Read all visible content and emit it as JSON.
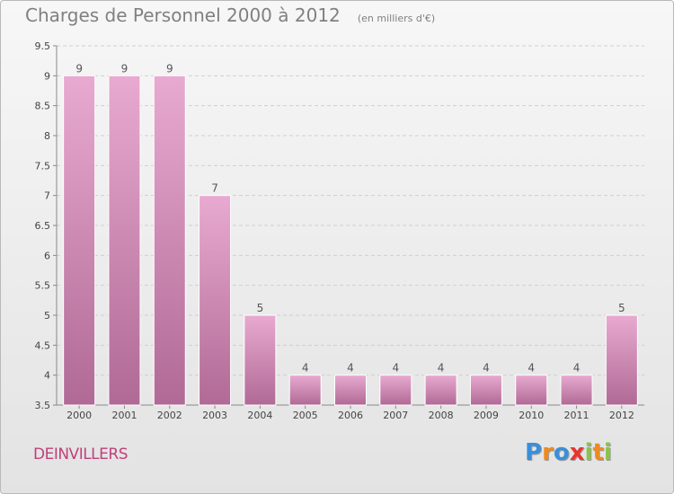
{
  "chart_data": {
    "type": "bar",
    "title": "Charges de Personnel 2000 à 2012",
    "unit_note": "(en milliers d'€)",
    "categories": [
      "2000",
      "2001",
      "2002",
      "2003",
      "2004",
      "2005",
      "2006",
      "2007",
      "2008",
      "2009",
      "2010",
      "2011",
      "2012"
    ],
    "values": [
      9,
      9,
      9,
      7,
      5,
      4,
      4,
      4,
      4,
      4,
      4,
      4,
      5
    ],
    "ylim": [
      3.5,
      9.5
    ],
    "yticks": [
      3.5,
      4,
      4.5,
      5,
      5.5,
      6,
      6.5,
      7,
      7.5,
      8,
      8.5,
      9,
      9.5
    ],
    "ytick_labels": [
      "3.5",
      "4",
      "4.5",
      "5",
      "5.5",
      "6",
      "6.5",
      "7",
      "7.5",
      "8",
      "8.5",
      "9",
      "9.5"
    ],
    "data_labels": [
      "9",
      "9",
      "9",
      "7",
      "5",
      "4",
      "4",
      "4",
      "4",
      "4",
      "4",
      "4",
      "5"
    ],
    "grid": "horizontal dashed",
    "bar_color": "#d890b8"
  },
  "commune": "DEINVILLERS",
  "logo": {
    "letters": [
      "P",
      "r",
      "o",
      "x",
      "i",
      "t",
      "i"
    ],
    "colors": [
      "#3b8fd9",
      "#f08a1d",
      "#3b8fd9",
      "#e8362d",
      "#8bc34a",
      "#f08a1d",
      "#8bc34a"
    ]
  }
}
